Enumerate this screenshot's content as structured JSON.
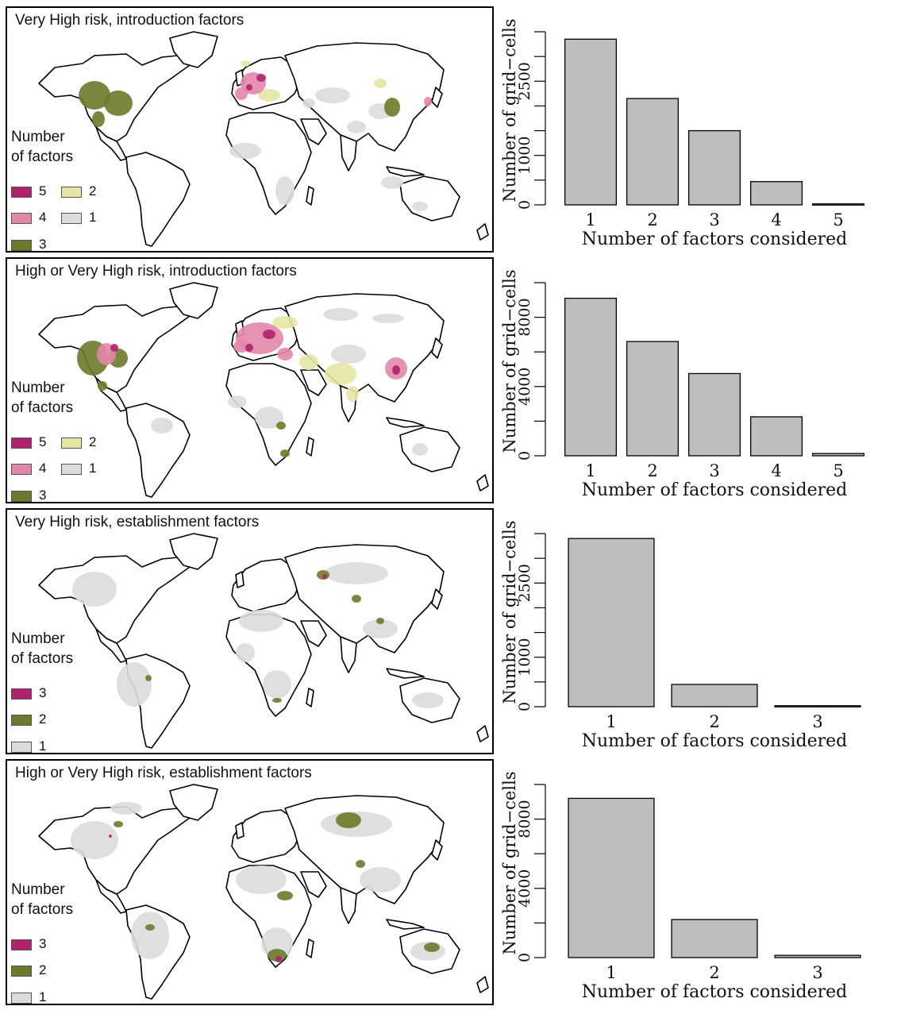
{
  "colors": {
    "five": "#b0226e",
    "four": "#e287aa",
    "three_intro": "#6b7a2a",
    "two": "#e5e6a5",
    "one": "#dcdcdc",
    "est_three": "#b0226e",
    "est_two": "#6b7a2a",
    "est_one": "#dcdcdc",
    "bar_fill": "#bebebe",
    "bar_stroke": "#000000"
  },
  "legend_title_line1": "Number",
  "legend_title_line2": "of factors",
  "panels": [
    {
      "title": "Very High risk, introduction factors",
      "legend": [
        {
          "label": "5",
          "color": "five"
        },
        {
          "label": "4",
          "color": "four"
        },
        {
          "label": "3",
          "color": "three_intro"
        },
        {
          "label": "2",
          "color": "two"
        },
        {
          "label": "1",
          "color": "one"
        }
      ]
    },
    {
      "title": "High or Very High risk, introduction factors",
      "legend": [
        {
          "label": "5",
          "color": "five"
        },
        {
          "label": "4",
          "color": "four"
        },
        {
          "label": "3",
          "color": "three_intro"
        },
        {
          "label": "2",
          "color": "two"
        },
        {
          "label": "1",
          "color": "one"
        }
      ]
    },
    {
      "title": "Very High risk, establishment factors",
      "legend": [
        {
          "label": "3",
          "color": "est_three"
        },
        {
          "label": "2",
          "color": "est_two"
        },
        {
          "label": "1",
          "color": "est_one"
        }
      ]
    },
    {
      "title": "High or Very High risk, establishment factors",
      "legend": [
        {
          "label": "3",
          "color": "est_three"
        },
        {
          "label": "2",
          "color": "est_two"
        },
        {
          "label": "1",
          "color": "est_one"
        }
      ]
    }
  ],
  "chart_data": [
    {
      "type": "bar",
      "categories": [
        "1",
        "2",
        "3",
        "4",
        "5"
      ],
      "values": [
        3350,
        2150,
        1500,
        470,
        20
      ],
      "xlabel": "Number of factors considered",
      "ylabel": "Number of grid−cells",
      "ylim": [
        0,
        3500
      ],
      "yticks": [
        0,
        1000,
        2500
      ],
      "yticks_minor": [
        500,
        1500,
        2000,
        3000,
        3500
      ]
    },
    {
      "type": "bar",
      "categories": [
        "1",
        "2",
        "3",
        "4",
        "5"
      ],
      "values": [
        9100,
        6600,
        4750,
        2250,
        130
      ],
      "xlabel": "Number of factors considered",
      "ylabel": "Number of grid−cells",
      "ylim": [
        0,
        10000
      ],
      "yticks": [
        0,
        4000,
        8000
      ],
      "yticks_minor": [
        2000,
        6000,
        10000
      ]
    },
    {
      "type": "bar",
      "categories": [
        "1",
        "2",
        "3"
      ],
      "values": [
        3400,
        450,
        20
      ],
      "xlabel": "Number of factors considered",
      "ylabel": "Number of grid−cells",
      "ylim": [
        0,
        3500
      ],
      "yticks": [
        0,
        1000,
        2500
      ],
      "yticks_minor": [
        500,
        1500,
        2000,
        3000,
        3500
      ]
    },
    {
      "type": "bar",
      "categories": [
        "1",
        "2",
        "3"
      ],
      "values": [
        9200,
        2200,
        130
      ],
      "xlabel": "Number of factors considered",
      "ylabel": "Number of grid−cells",
      "ylim": [
        0,
        10000
      ],
      "yticks": [
        0,
        4000,
        8000
      ],
      "yticks_minor": [
        2000,
        6000,
        10000
      ]
    }
  ]
}
